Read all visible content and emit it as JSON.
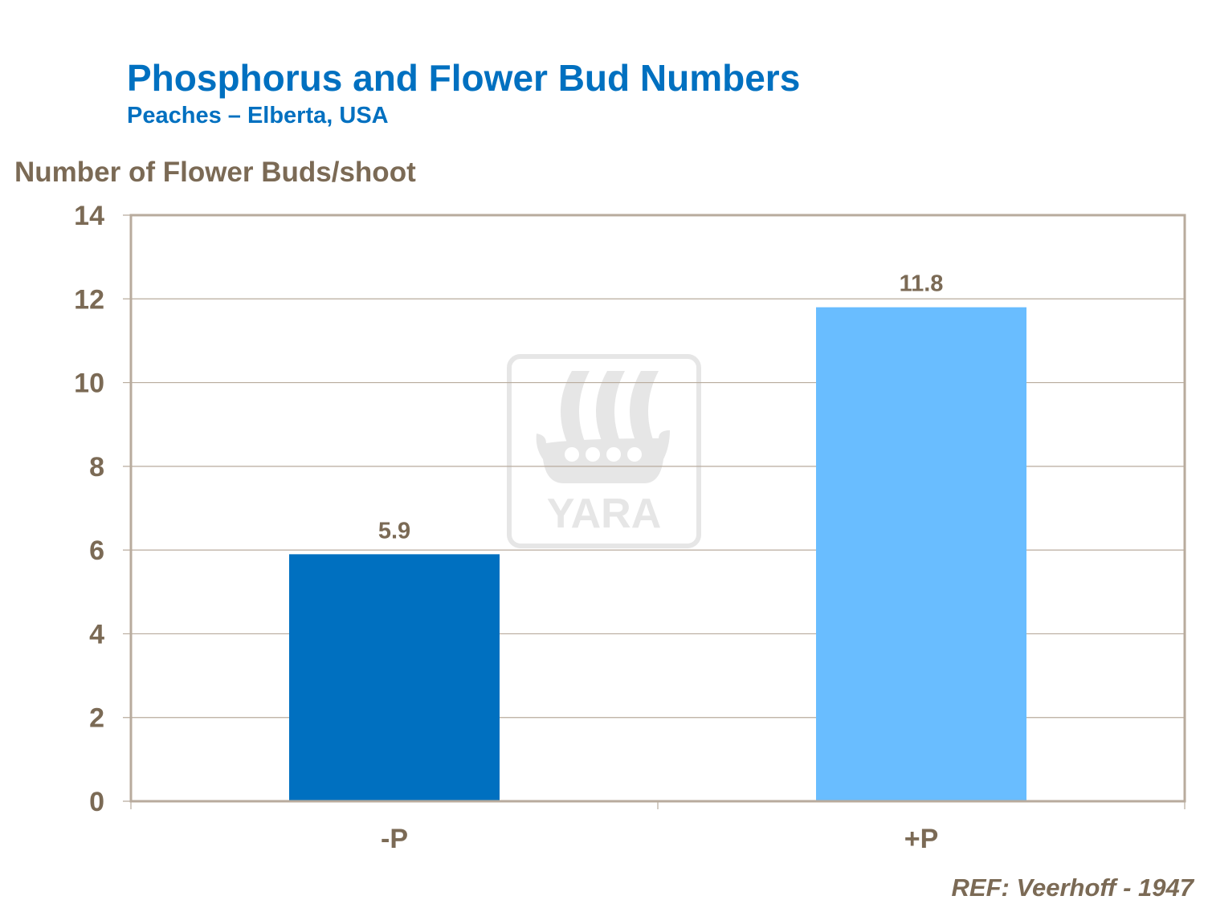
{
  "chart_data": {
    "type": "bar",
    "title": "Phosphorus and Flower Bud Numbers",
    "subtitle": "Peaches  – Elberta, USA",
    "ylabel": "Number of Flower Buds/shoot",
    "xlabel": "",
    "categories": [
      "-P",
      "+P"
    ],
    "values": [
      5.9,
      11.8
    ],
    "data_labels": [
      "5.9",
      "11.8"
    ],
    "bar_colors": [
      "#0070C0",
      "#69BDFF"
    ],
    "ylim": [
      0,
      14
    ],
    "yticks": [
      0,
      2,
      4,
      6,
      8,
      10,
      12,
      14
    ],
    "grid": true,
    "legend": "none",
    "text_color": "#7B6A55",
    "title_color": "#0070C0"
  },
  "watermark": {
    "logo_text": "YARA"
  },
  "reference": "REF: Veerhoff - 1947"
}
